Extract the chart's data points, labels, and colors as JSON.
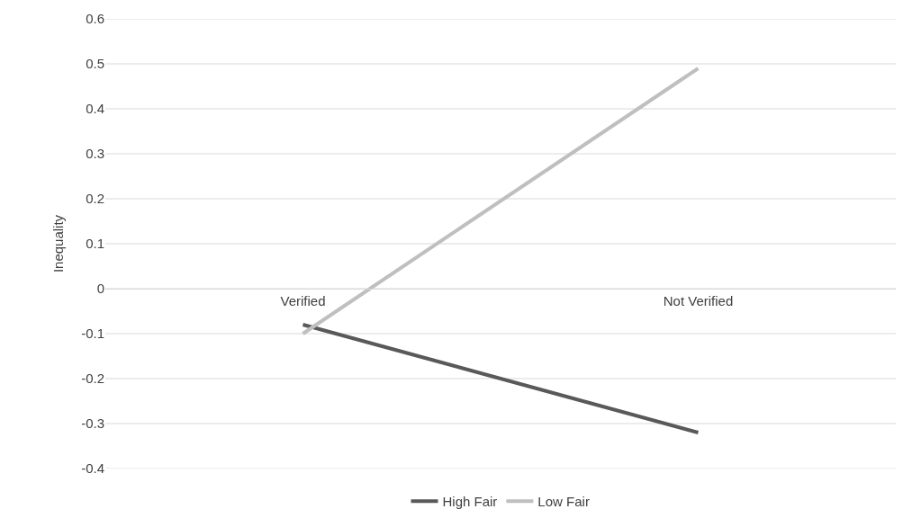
{
  "chart_data": {
    "type": "line",
    "ylabel": "Inequality",
    "categories": [
      "Verified",
      "Not Verified"
    ],
    "series": [
      {
        "name": "High Fair",
        "color": "#595959",
        "values": [
          -0.08,
          -0.32
        ]
      },
      {
        "name": "Low Fair",
        "color": "#bfbfbf",
        "values": [
          -0.1,
          0.49
        ]
      }
    ],
    "ylim": [
      -0.4,
      0.6
    ],
    "yticks": [
      -0.4,
      -0.3,
      -0.2,
      -0.1,
      0,
      0.1,
      0.2,
      0.3,
      0.4,
      0.5,
      0.6
    ],
    "grid": "y",
    "legend": "bottom",
    "marker": "none",
    "line_style": "solid"
  }
}
